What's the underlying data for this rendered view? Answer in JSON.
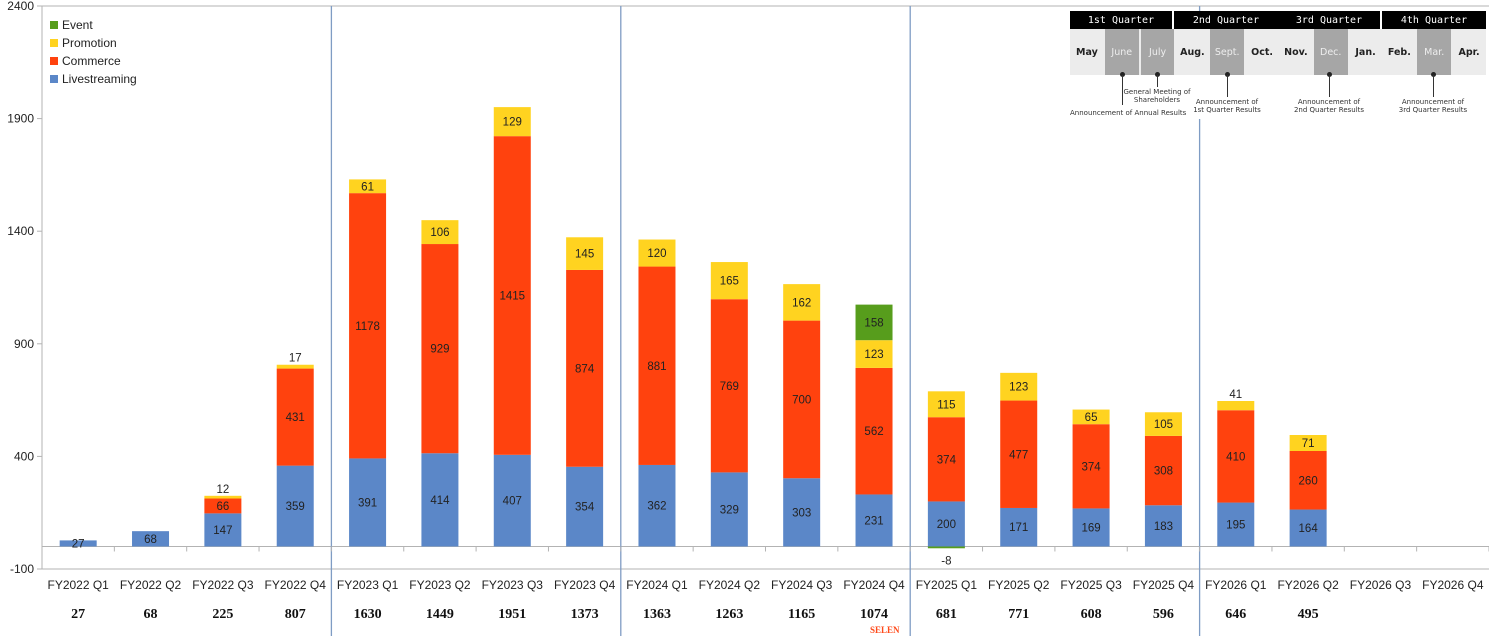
{
  "chart_data": {
    "type": "bar",
    "stacked": true,
    "ylim": [
      -100,
      2400
    ],
    "yticks": [
      -100,
      400,
      900,
      1400,
      1900,
      2400
    ],
    "grid": false,
    "legend_position": "top-left",
    "categories": [
      "FY2022 Q1",
      "FY2022 Q2",
      "FY2022 Q3",
      "FY2022 Q4",
      "FY2023 Q1",
      "FY2023 Q2",
      "FY2023 Q3",
      "FY2023 Q4",
      "FY2024 Q1",
      "FY2024 Q2",
      "FY2024 Q3",
      "FY2024 Q4",
      "FY2025 Q1",
      "FY2025 Q2",
      "FY2025 Q3",
      "FY2025 Q4",
      "FY2026 Q1",
      "FY2026 Q2",
      "FY2026 Q3",
      "FY2026 Q4"
    ],
    "series": [
      {
        "name": "Livestreaming",
        "color": "#5b87c8",
        "values": [
          27,
          68,
          147,
          359,
          391,
          414,
          407,
          354,
          362,
          329,
          303,
          231,
          200,
          171,
          169,
          183,
          195,
          164,
          null,
          null
        ]
      },
      {
        "name": "Commerce",
        "color": "#ff420e",
        "values": [
          null,
          null,
          66,
          431,
          1178,
          929,
          1415,
          874,
          881,
          769,
          700,
          562,
          374,
          477,
          374,
          308,
          410,
          260,
          null,
          null
        ]
      },
      {
        "name": "Promotion",
        "color": "#ffd320",
        "values": [
          null,
          null,
          12,
          17,
          61,
          106,
          129,
          145,
          120,
          165,
          162,
          123,
          115,
          123,
          65,
          105,
          41,
          71,
          null,
          null
        ]
      },
      {
        "name": "Event",
        "color": "#579d1c",
        "values": [
          null,
          null,
          null,
          null,
          null,
          null,
          null,
          null,
          null,
          null,
          null,
          158,
          -8,
          null,
          null,
          null,
          null,
          null,
          null,
          null
        ]
      }
    ],
    "totals": [
      "27",
      "68",
      "225",
      "807",
      "1630",
      "1449",
      "1951",
      "1373",
      "1363",
      "1263",
      "1165",
      "1074",
      "681",
      "771",
      "608",
      "596",
      "646",
      "495",
      "",
      ""
    ],
    "legend": [
      "Event",
      "Promotion",
      "Commerce",
      "Livestreaming"
    ],
    "annotation": "SELEN"
  },
  "legend_colors": {
    "Event": "#579d1c",
    "Promotion": "#ffd320",
    "Commerce": "#ff420e",
    "Livestreaming": "#5b87c8"
  },
  "calendar": {
    "quarters": [
      "1st Quarter",
      "2nd Quarter",
      "3rd Quarter",
      "4th Quarter"
    ],
    "months": [
      "May",
      "June",
      "July",
      "Aug.",
      "Sept.",
      "Oct.",
      "Nov.",
      "Dec.",
      "Jan.",
      "Feb.",
      "Mar.",
      "Apr."
    ],
    "annotations": {
      "annual": "Announcement of Annual Results",
      "agm": "General Meeting of Shareholders",
      "q1": "Announcement of 1st Quarter Results",
      "q2": "Announcement of 2nd Quarter Results",
      "q3": "Announcement of 3rd Quarter Results"
    }
  }
}
